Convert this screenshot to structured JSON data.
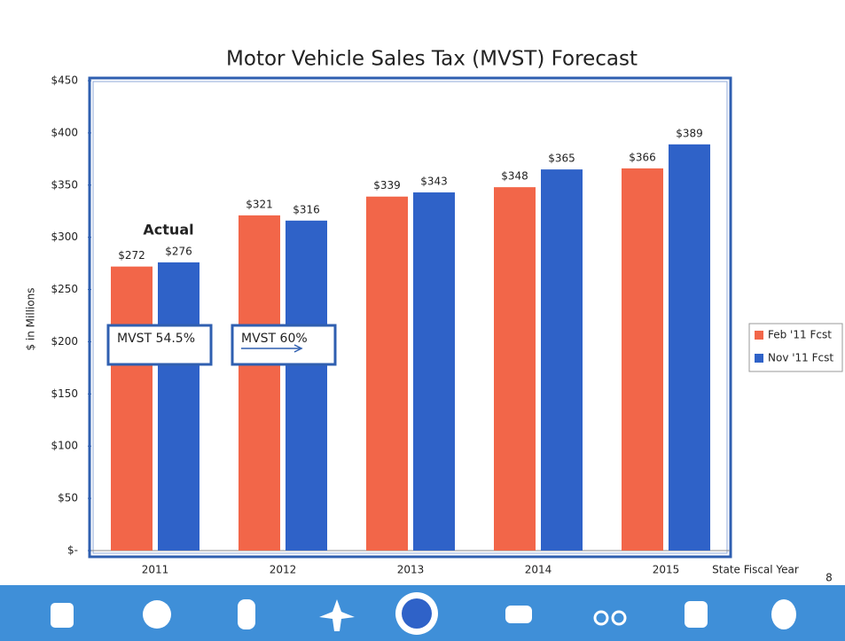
{
  "chart_data": {
    "type": "bar",
    "title": "Motor Vehicle Sales Tax (MVST)  Forecast",
    "x_label": "State Fiscal Year",
    "y_label": "$ in Millions",
    "categories": [
      "2011",
      "2012",
      "2013",
      "2014",
      "2015"
    ],
    "series": [
      {
        "name": "Feb '11 Fcst",
        "color": "#f26649",
        "values": [
          272,
          321,
          339,
          348,
          366
        ],
        "value_labels": [
          "$272",
          "$321",
          "$339",
          "$348",
          "$366"
        ]
      },
      {
        "name": "Nov '11 Fcst",
        "color": "#2f62c8",
        "values": [
          276,
          316,
          343,
          365,
          389
        ],
        "value_labels": [
          "$276",
          "$316",
          "$343",
          "$365",
          "$389"
        ]
      }
    ],
    "ylim": [
      0,
      450
    ],
    "yticks": [
      {
        "value": 0,
        "label": "$-"
      },
      {
        "value": 50,
        "label": "$50"
      },
      {
        "value": 100,
        "label": "$100"
      },
      {
        "value": 150,
        "label": "$150"
      },
      {
        "value": 200,
        "label": "$200"
      },
      {
        "value": 250,
        "label": "$250"
      },
      {
        "value": 300,
        "label": "$300"
      },
      {
        "value": 350,
        "label": "$350"
      },
      {
        "value": 400,
        "label": "$400"
      },
      {
        "value": 450,
        "label": "$450"
      }
    ],
    "legend": "right",
    "annotations": [
      "Actual",
      "MVST 54.5%",
      "MVST 60%"
    ]
  },
  "slide": {
    "page_number": 8
  }
}
